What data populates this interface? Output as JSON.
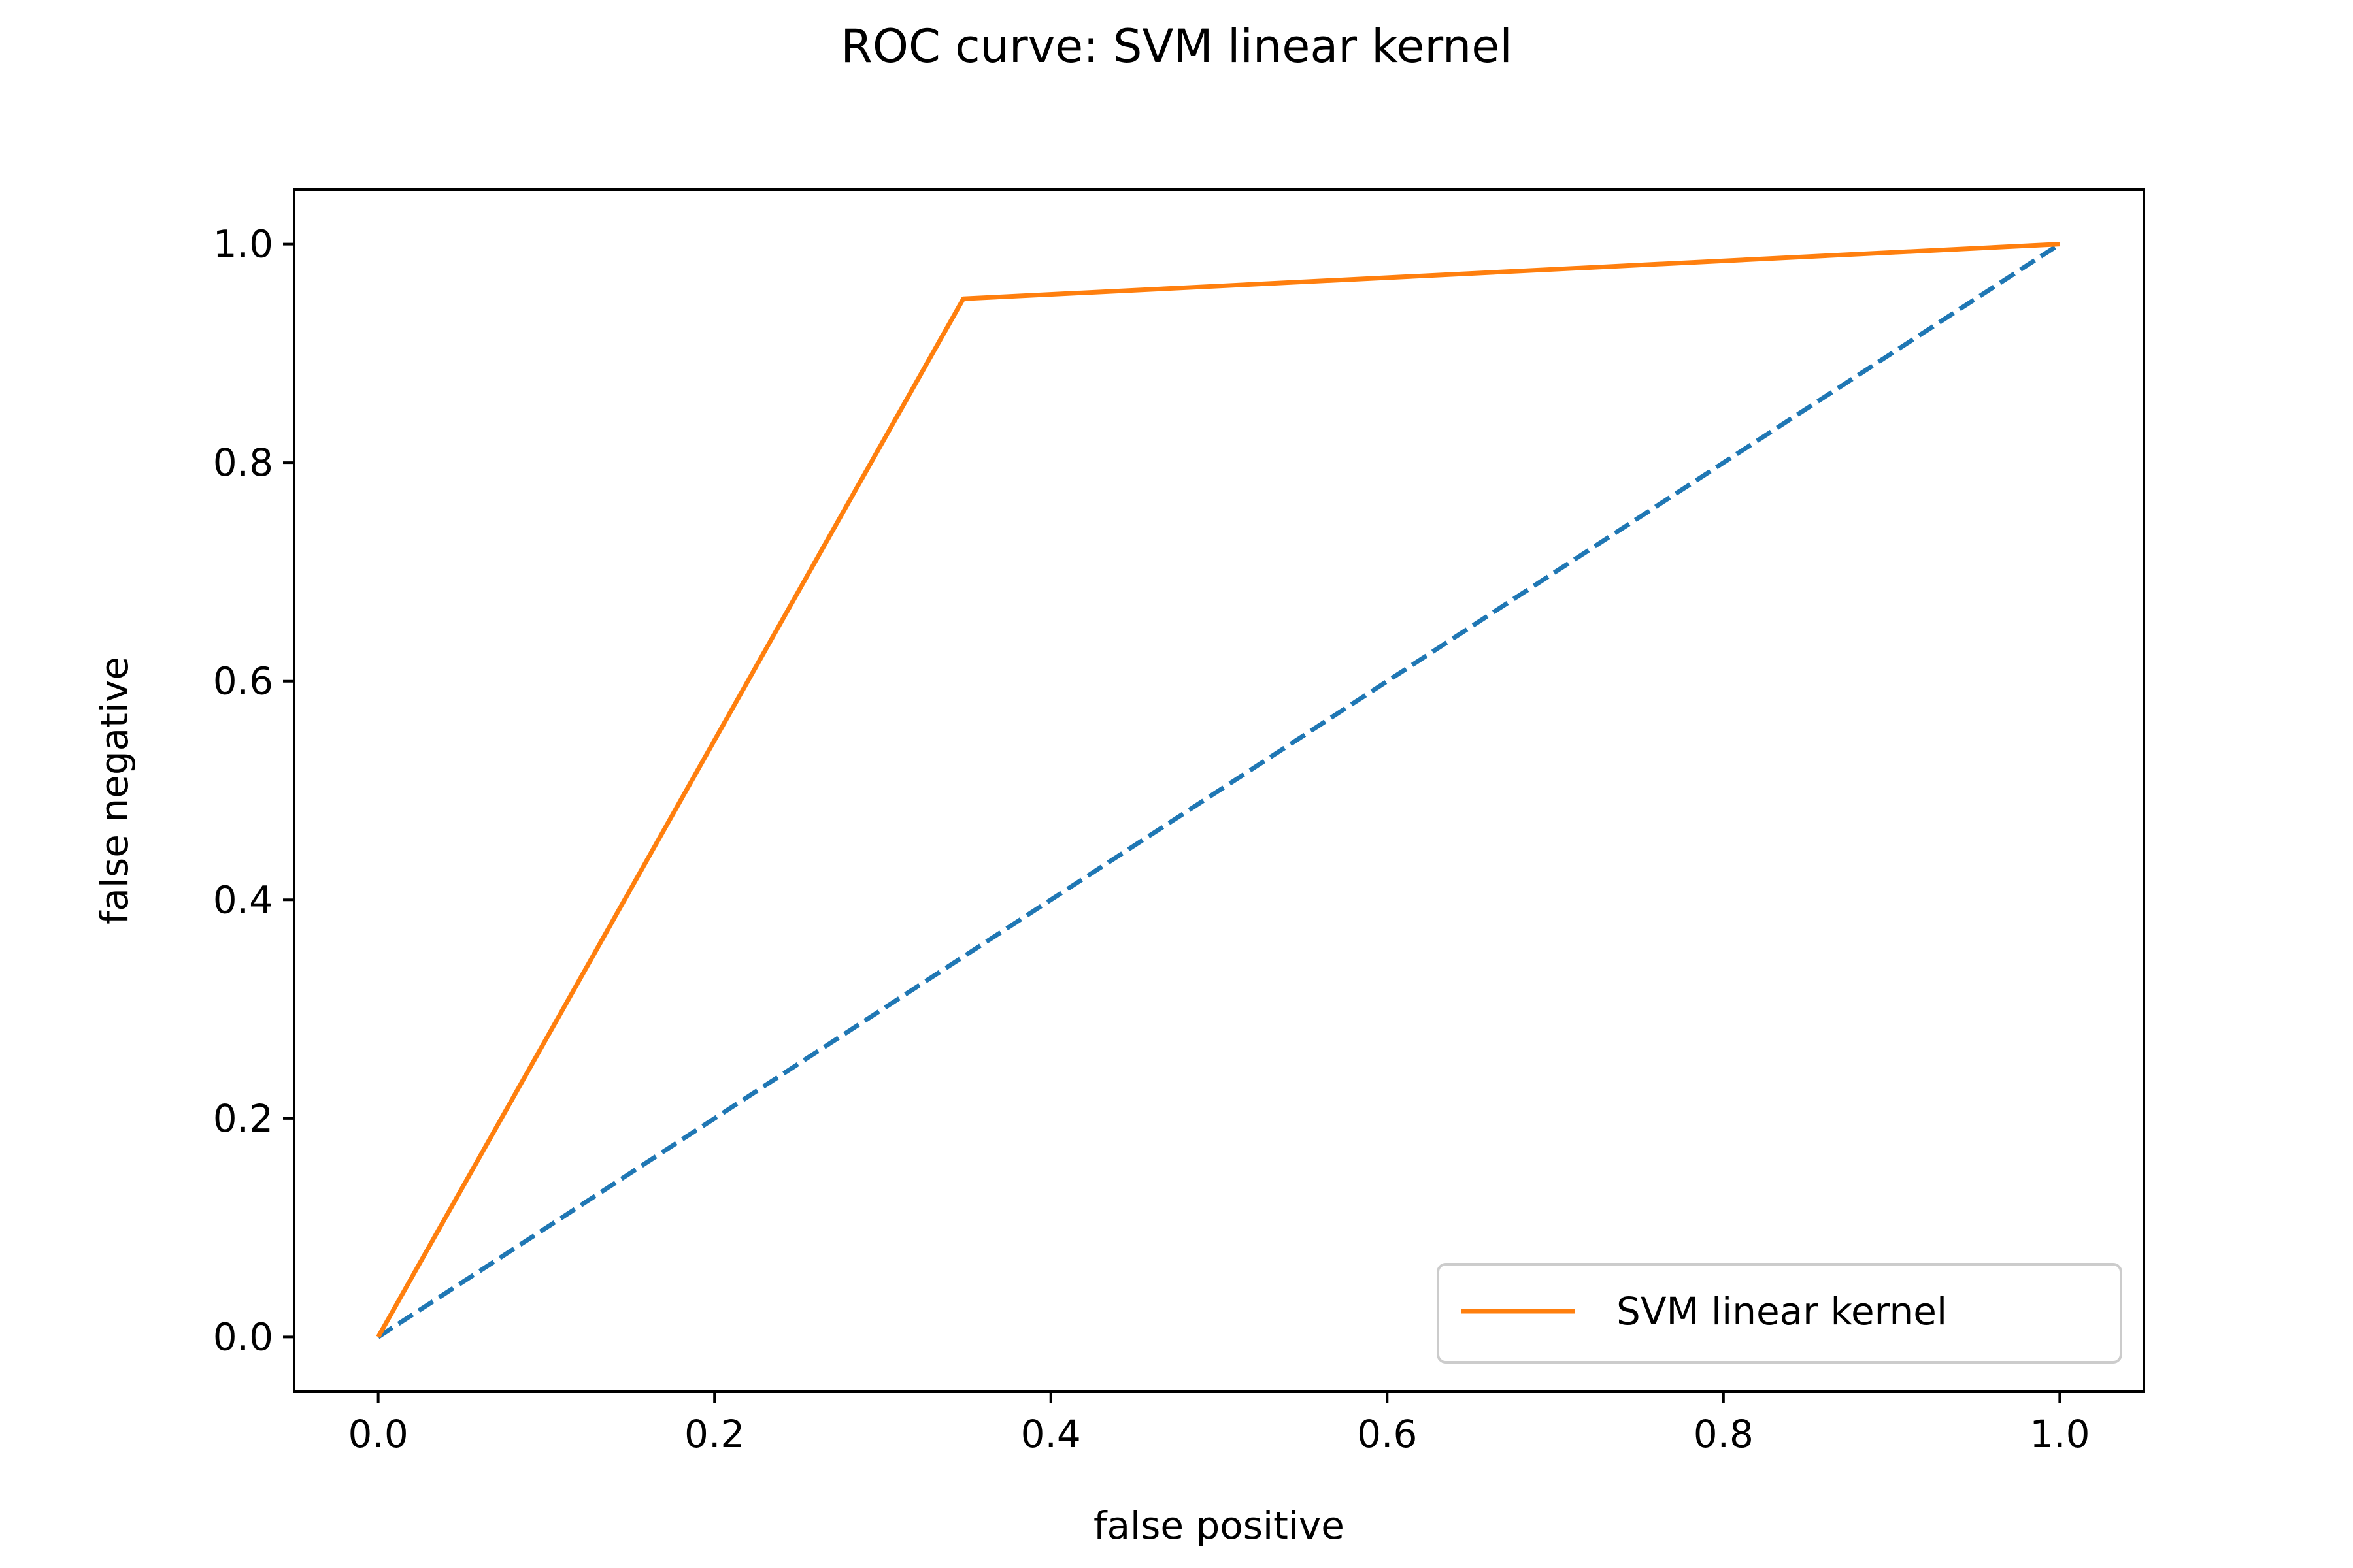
{
  "chart_data": {
    "type": "line",
    "title": "ROC curve: SVM linear kernel",
    "xlabel": "false positive",
    "ylabel": "false negative",
    "xlim": [
      -0.05,
      1.05
    ],
    "ylim": [
      -0.05,
      1.05
    ],
    "xticks": [
      0.0,
      0.2,
      0.4,
      0.6,
      0.8,
      1.0
    ],
    "yticks": [
      0.0,
      0.2,
      0.4,
      0.6,
      0.8,
      1.0
    ],
    "xtick_labels": [
      "0.0",
      "0.2",
      "0.4",
      "0.6",
      "0.8",
      "1.0"
    ],
    "ytick_labels": [
      "0.0",
      "0.2",
      "0.4",
      "0.6",
      "0.8",
      "1.0"
    ],
    "grid": false,
    "legend_position": "lower-right",
    "series": [
      {
        "name": "",
        "style": "dashed",
        "color": "#1f77b4",
        "x": [
          0.0,
          1.0
        ],
        "y": [
          0.0,
          1.0
        ]
      },
      {
        "name": "SVM linear kernel",
        "style": "solid",
        "color": "#ff7f0e",
        "x": [
          0.0,
          0.348,
          1.0
        ],
        "y": [
          0.0,
          0.95,
          1.0
        ]
      }
    ]
  }
}
